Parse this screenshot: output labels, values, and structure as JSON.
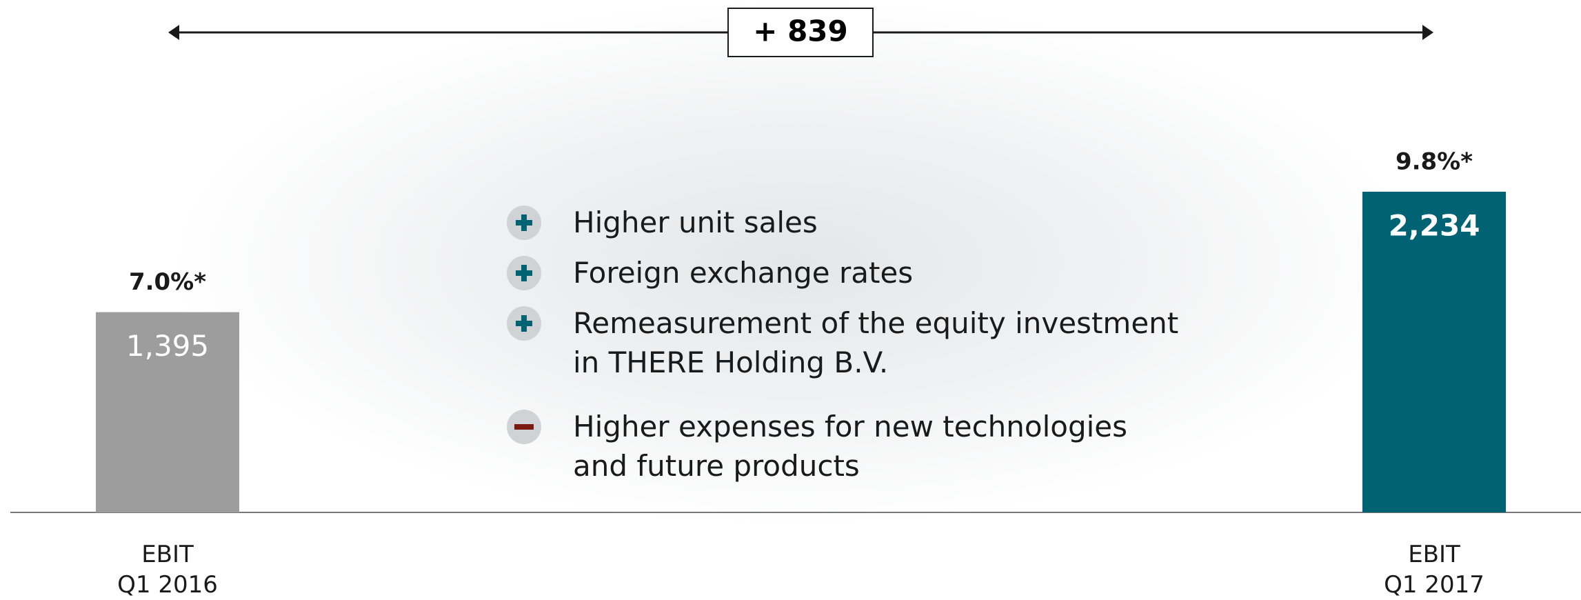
{
  "chart_data": {
    "type": "bar",
    "categories": [
      "EBIT\nQ1 2016",
      "EBIT\nQ1 2017"
    ],
    "values": [
      1395,
      2234
    ],
    "value_labels": [
      "1,395",
      "2,234"
    ],
    "colors": [
      "#9d9d9d",
      "#006374"
    ],
    "margin_labels": [
      "7.0%*",
      "9.8%*"
    ],
    "change_label": "+ 839",
    "factors": [
      "Higher unit sales",
      "Foreign exchange rates",
      "Remeasurement of the equity investment in THERE Holding B.V.",
      "Higher expenses for new technologies and future products"
    ]
  }
}
